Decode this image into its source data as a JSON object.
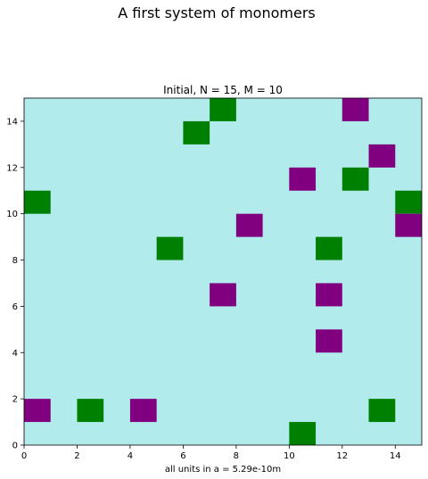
{
  "chart_data": {
    "type": "heatmap",
    "suptitle": "A first system of monomers",
    "title": "Initial, N = 15, M = 10",
    "xlabel": "all units in a = 5.29e-10m",
    "ylabel": "",
    "xlim": [
      0,
      15
    ],
    "ylim": [
      0,
      15
    ],
    "xticks": [
      "0",
      "2",
      "4",
      "6",
      "8",
      "10",
      "12",
      "14"
    ],
    "yticks": [
      "0",
      "2",
      "4",
      "6",
      "8",
      "10",
      "12",
      "14"
    ],
    "grid": false,
    "colors": {
      "background": "#b2ebeb",
      "green": "#008000",
      "purple": "#800080"
    },
    "cells": [
      {
        "x": 7,
        "y": 14,
        "color": "green"
      },
      {
        "x": 12,
        "y": 14,
        "color": "purple"
      },
      {
        "x": 6,
        "y": 13,
        "color": "green"
      },
      {
        "x": 13,
        "y": 12,
        "color": "purple"
      },
      {
        "x": 10,
        "y": 11,
        "color": "purple"
      },
      {
        "x": 12,
        "y": 11,
        "color": "green"
      },
      {
        "x": 0,
        "y": 10,
        "color": "green"
      },
      {
        "x": 14,
        "y": 10,
        "color": "green"
      },
      {
        "x": 8,
        "y": 9,
        "color": "purple"
      },
      {
        "x": 14,
        "y": 9,
        "color": "purple"
      },
      {
        "x": 5,
        "y": 8,
        "color": "green"
      },
      {
        "x": 11,
        "y": 8,
        "color": "green"
      },
      {
        "x": 7,
        "y": 6,
        "color": "purple"
      },
      {
        "x": 11,
        "y": 6,
        "color": "purple"
      },
      {
        "x": 11,
        "y": 4,
        "color": "purple"
      },
      {
        "x": 0,
        "y": 1,
        "color": "purple"
      },
      {
        "x": 2,
        "y": 1,
        "color": "green"
      },
      {
        "x": 4,
        "y": 1,
        "color": "purple"
      },
      {
        "x": 13,
        "y": 1,
        "color": "green"
      },
      {
        "x": 10,
        "y": 0,
        "color": "green"
      }
    ]
  }
}
